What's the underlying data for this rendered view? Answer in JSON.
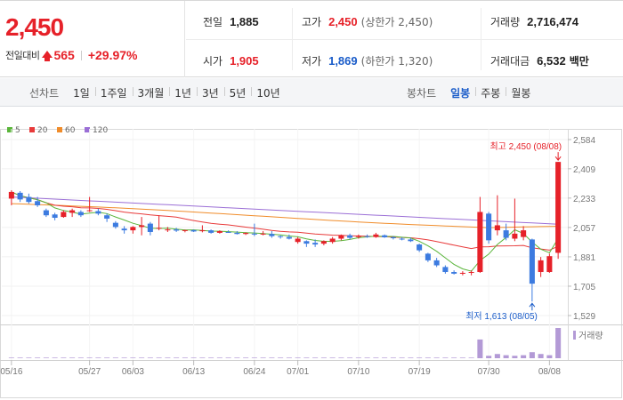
{
  "quote": {
    "price": "2,450",
    "change_label": "전일대비",
    "change_value": "565",
    "change_pct": "+29.97%",
    "prev_close_label": "전일",
    "prev_close": "1,885",
    "high_label": "고가",
    "high": "2,450",
    "upper_limit_label": "(상한가 2,450)",
    "volume_label": "거래량",
    "volume": "2,716,474",
    "open_label": "시가",
    "open": "1,905",
    "low_label": "저가",
    "low": "1,869",
    "lower_limit_label": "(하한가 1,320)",
    "trade_value_label": "거래대금",
    "trade_value": "6,532",
    "trade_value_unit": "백만"
  },
  "toolbar": {
    "line_chart_label": "선차트",
    "periods": [
      "1일",
      "1주일",
      "3개월",
      "1년",
      "3년",
      "5년",
      "10년"
    ],
    "candle_chart_label": "봉차트",
    "candle_periods": [
      "일봉",
      "주봉",
      "월봉"
    ],
    "active_candle_period": "일봉"
  },
  "colors": {
    "up": "#e62129",
    "down": "#3c7be0",
    "ma5": "#5ab53a",
    "ma20": "#e83a3a",
    "ma60": "#f08c2a",
    "ma120": "#9b6fd6",
    "volume": "#b39ad6"
  },
  "chart_data": {
    "type": "candlestick",
    "legend": [
      "5",
      "20",
      "60",
      "120"
    ],
    "y_ticks": [
      "2,584",
      "2,409",
      "2,233",
      "2,057",
      "1,881",
      "1,705",
      "1,529"
    ],
    "ylim": [
      1529,
      2584
    ],
    "x_ticks": [
      "05/16",
      "05/27",
      "06/03",
      "06/13",
      "06/24",
      "07/01",
      "07/10",
      "07/19",
      "07/30",
      "08/08"
    ],
    "x_tick_index": [
      0,
      9,
      14,
      21,
      28,
      33,
      40,
      47,
      55,
      62
    ],
    "volume_label": "거래량",
    "high_annotation": "최고 2,450 (08/08)",
    "low_annotation": "최저 1,613 (08/05)",
    "candles": [
      {
        "o": 2230,
        "h": 2280,
        "l": 2190,
        "c": 2270
      },
      {
        "o": 2265,
        "h": 2275,
        "l": 2210,
        "c": 2225
      },
      {
        "o": 2240,
        "h": 2260,
        "l": 2200,
        "c": 2210
      },
      {
        "o": 2215,
        "h": 2240,
        "l": 2180,
        "c": 2190
      },
      {
        "o": 2160,
        "h": 2170,
        "l": 2120,
        "c": 2130
      },
      {
        "o": 2135,
        "h": 2145,
        "l": 2100,
        "c": 2115
      },
      {
        "o": 2120,
        "h": 2160,
        "l": 2115,
        "c": 2150
      },
      {
        "o": 2145,
        "h": 2170,
        "l": 2120,
        "c": 2160
      },
      {
        "o": 2150,
        "h": 2160,
        "l": 2120,
        "c": 2130
      },
      {
        "o": 2155,
        "h": 2240,
        "l": 2150,
        "c": 2160
      },
      {
        "o": 2155,
        "h": 2170,
        "l": 2130,
        "c": 2140
      },
      {
        "o": 2130,
        "h": 2140,
        "l": 2090,
        "c": 2110
      },
      {
        "o": 2085,
        "h": 2095,
        "l": 2050,
        "c": 2060
      },
      {
        "o": 2050,
        "h": 2065,
        "l": 2020,
        "c": 2040
      },
      {
        "o": 2040,
        "h": 2065,
        "l": 2020,
        "c": 2060
      },
      {
        "o": 2060,
        "h": 2120,
        "l": 2010,
        "c": 2070
      },
      {
        "o": 2080,
        "h": 2090,
        "l": 2010,
        "c": 2030
      },
      {
        "o": 2050,
        "h": 2130,
        "l": 2040,
        "c": 2055
      },
      {
        "o": 2040,
        "h": 2060,
        "l": 2030,
        "c": 2045
      },
      {
        "o": 2045,
        "h": 2055,
        "l": 2030,
        "c": 2038
      },
      {
        "o": 2036,
        "h": 2044,
        "l": 2028,
        "c": 2041
      },
      {
        "o": 2041,
        "h": 2045,
        "l": 2030,
        "c": 2033
      },
      {
        "o": 2035,
        "h": 2070,
        "l": 2028,
        "c": 2040
      },
      {
        "o": 2040,
        "h": 2045,
        "l": 2020,
        "c": 2025
      },
      {
        "o": 2025,
        "h": 2040,
        "l": 2020,
        "c": 2035
      },
      {
        "o": 2030,
        "h": 2040,
        "l": 2025,
        "c": 2028
      },
      {
        "o": 2025,
        "h": 2035,
        "l": 2015,
        "c": 2018
      },
      {
        "o": 2018,
        "h": 2028,
        "l": 2012,
        "c": 2024
      },
      {
        "o": 2020,
        "h": 2080,
        "l": 2005,
        "c": 2015
      },
      {
        "o": 2015,
        "h": 2035,
        "l": 2010,
        "c": 2020
      },
      {
        "o": 2018,
        "h": 2035,
        "l": 1995,
        "c": 2005
      },
      {
        "o": 2005,
        "h": 2010,
        "l": 1990,
        "c": 2000
      },
      {
        "o": 2000,
        "h": 2015,
        "l": 1985,
        "c": 1990
      },
      {
        "o": 1970,
        "h": 2000,
        "l": 1960,
        "c": 1990
      },
      {
        "o": 1975,
        "h": 1980,
        "l": 1940,
        "c": 1960
      },
      {
        "o": 1965,
        "h": 1985,
        "l": 1940,
        "c": 1955
      },
      {
        "o": 1960,
        "h": 1980,
        "l": 1950,
        "c": 1975
      },
      {
        "o": 1970,
        "h": 2000,
        "l": 1960,
        "c": 1990
      },
      {
        "o": 1990,
        "h": 2015,
        "l": 1980,
        "c": 2010
      },
      {
        "o": 2010,
        "h": 2020,
        "l": 1985,
        "c": 1995
      },
      {
        "o": 2000,
        "h": 2015,
        "l": 1990,
        "c": 2008
      },
      {
        "o": 2005,
        "h": 2015,
        "l": 1995,
        "c": 2000
      },
      {
        "o": 2000,
        "h": 2025,
        "l": 1995,
        "c": 2015
      },
      {
        "o": 2010,
        "h": 2015,
        "l": 1995,
        "c": 1998
      },
      {
        "o": 1998,
        "h": 2005,
        "l": 1985,
        "c": 1995
      },
      {
        "o": 1990,
        "h": 1998,
        "l": 1980,
        "c": 1985
      },
      {
        "o": 1985,
        "h": 1995,
        "l": 1970,
        "c": 1975
      },
      {
        "o": 1955,
        "h": 1960,
        "l": 1910,
        "c": 1920
      },
      {
        "o": 1900,
        "h": 1905,
        "l": 1850,
        "c": 1860
      },
      {
        "o": 1860,
        "h": 1875,
        "l": 1820,
        "c": 1830
      },
      {
        "o": 1820,
        "h": 1830,
        "l": 1780,
        "c": 1790
      },
      {
        "o": 1790,
        "h": 1800,
        "l": 1775,
        "c": 1780
      },
      {
        "o": 1780,
        "h": 1795,
        "l": 1770,
        "c": 1785
      },
      {
        "o": 1785,
        "h": 1800,
        "l": 1770,
        "c": 1790
      },
      {
        "o": 1790,
        "h": 2240,
        "l": 1785,
        "c": 2150
      },
      {
        "o": 2140,
        "h": 2150,
        "l": 1960,
        "c": 1980
      },
      {
        "o": 2040,
        "h": 2250,
        "l": 2010,
        "c": 2070
      },
      {
        "o": 2040,
        "h": 2080,
        "l": 1980,
        "c": 1995
      },
      {
        "o": 1990,
        "h": 2230,
        "l": 1975,
        "c": 2020
      },
      {
        "o": 2000,
        "h": 2065,
        "l": 1980,
        "c": 2040
      },
      {
        "o": 1985,
        "h": 1990,
        "l": 1613,
        "c": 1720
      },
      {
        "o": 1790,
        "h": 1880,
        "l": 1760,
        "c": 1860
      },
      {
        "o": 1790,
        "h": 1900,
        "l": 1785,
        "c": 1885
      },
      {
        "o": 1905,
        "h": 2450,
        "l": 1869,
        "c": 2450
      }
    ],
    "volume": [
      2,
      2,
      2,
      2,
      2,
      2,
      2,
      2,
      2,
      2,
      2,
      2,
      2,
      2,
      2,
      2,
      2,
      2,
      2,
      2,
      2,
      2,
      2,
      2,
      2,
      2,
      2,
      2,
      2,
      2,
      2,
      2,
      2,
      2,
      2,
      2,
      2,
      2,
      2,
      2,
      2,
      2,
      2,
      2,
      2,
      2,
      2,
      2,
      2,
      2,
      2,
      2,
      2,
      2,
      62,
      8,
      14,
      10,
      8,
      10,
      20,
      14,
      10,
      100
    ]
  }
}
